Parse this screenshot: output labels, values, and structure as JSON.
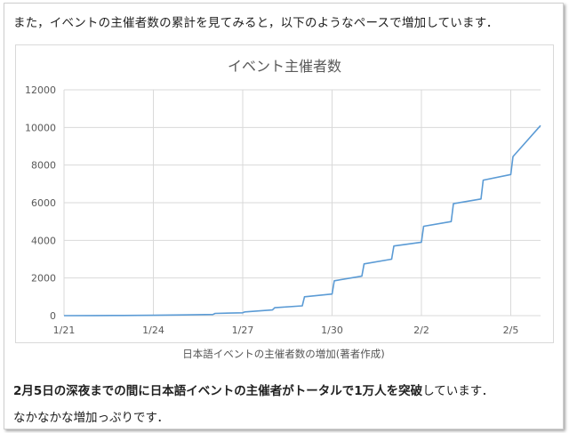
{
  "article": {
    "intro": "また，イベントの主催者数の累計を見てみると，以下のようなペースで増加しています．",
    "caption": "日本語イベントの主催者数の増加(著者作成)",
    "highlight_bold": "2月5日の深夜までの間に日本語イベントの主催者がトータルで1万人を突破",
    "highlight_rest": "しています．",
    "closing": "なかなかな増加っぷりです．"
  },
  "colors": {
    "line": "#5b9bd5",
    "grid": "#d9d9d9",
    "axis_text": "#595959"
  },
  "chart_data": {
    "type": "line",
    "title": "イベント主催者数",
    "xlabel": "",
    "ylabel": "",
    "ylim": [
      0,
      12000
    ],
    "yticks": [
      0,
      2000,
      4000,
      6000,
      8000,
      10000,
      12000
    ],
    "xlim": [
      "1/21",
      "2/6"
    ],
    "xticks": [
      "1/21",
      "1/24",
      "1/27",
      "1/30",
      "2/2",
      "2/5"
    ],
    "grid": true,
    "legend": "none",
    "series": [
      {
        "x": [
          "1/21",
          "1/22",
          "1/23",
          "1/24",
          "1/25",
          "1/26",
          "1/26",
          "1/27",
          "1/27",
          "1/28",
          "1/28",
          "1/29",
          "1/29",
          "1/30",
          "1/30",
          "1/31",
          "1/31",
          "2/1",
          "2/1",
          "2/2",
          "2/2",
          "2/3",
          "2/3",
          "2/4",
          "2/4",
          "2/5",
          "2/5",
          "2/6"
        ],
        "y": [
          0,
          5,
          10,
          20,
          40,
          60,
          120,
          150,
          200,
          300,
          420,
          520,
          1000,
          1150,
          1850,
          2100,
          2750,
          3000,
          3700,
          3900,
          4750,
          5000,
          5950,
          6200,
          7200,
          7500,
          8450,
          10100
        ]
      }
    ]
  }
}
